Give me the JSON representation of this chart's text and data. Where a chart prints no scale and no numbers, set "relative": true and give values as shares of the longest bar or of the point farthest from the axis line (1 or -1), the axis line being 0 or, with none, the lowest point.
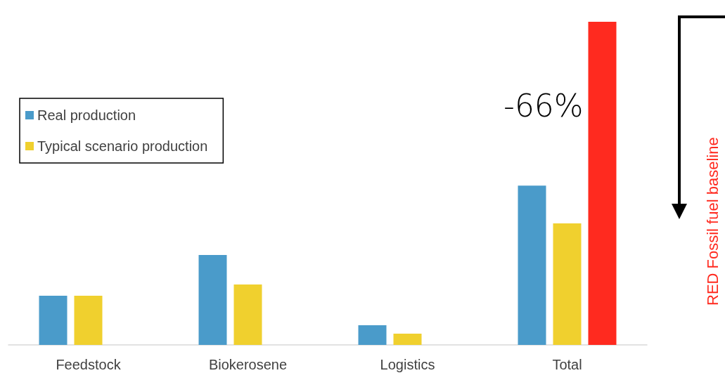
{
  "chart_data": {
    "type": "bar",
    "relative": true,
    "categories": [
      "Feedstock",
      "Biokerosene",
      "Logistics",
      "Total"
    ],
    "series": [
      {
        "name": "Real production",
        "color": "#4a9bca",
        "values": [
          0.152,
          0.278,
          0.061,
          0.493
        ]
      },
      {
        "name": "Typical scenario production",
        "color": "#f0d02e",
        "values": [
          0.152,
          0.187,
          0.035,
          0.376
        ]
      },
      {
        "name": "RED Fossil fuel baseline",
        "color": "#ff2a1f",
        "values": [
          null,
          null,
          null,
          1
        ]
      }
    ],
    "legend": "top left",
    "annotations": [
      "-66%"
    ]
  }
}
